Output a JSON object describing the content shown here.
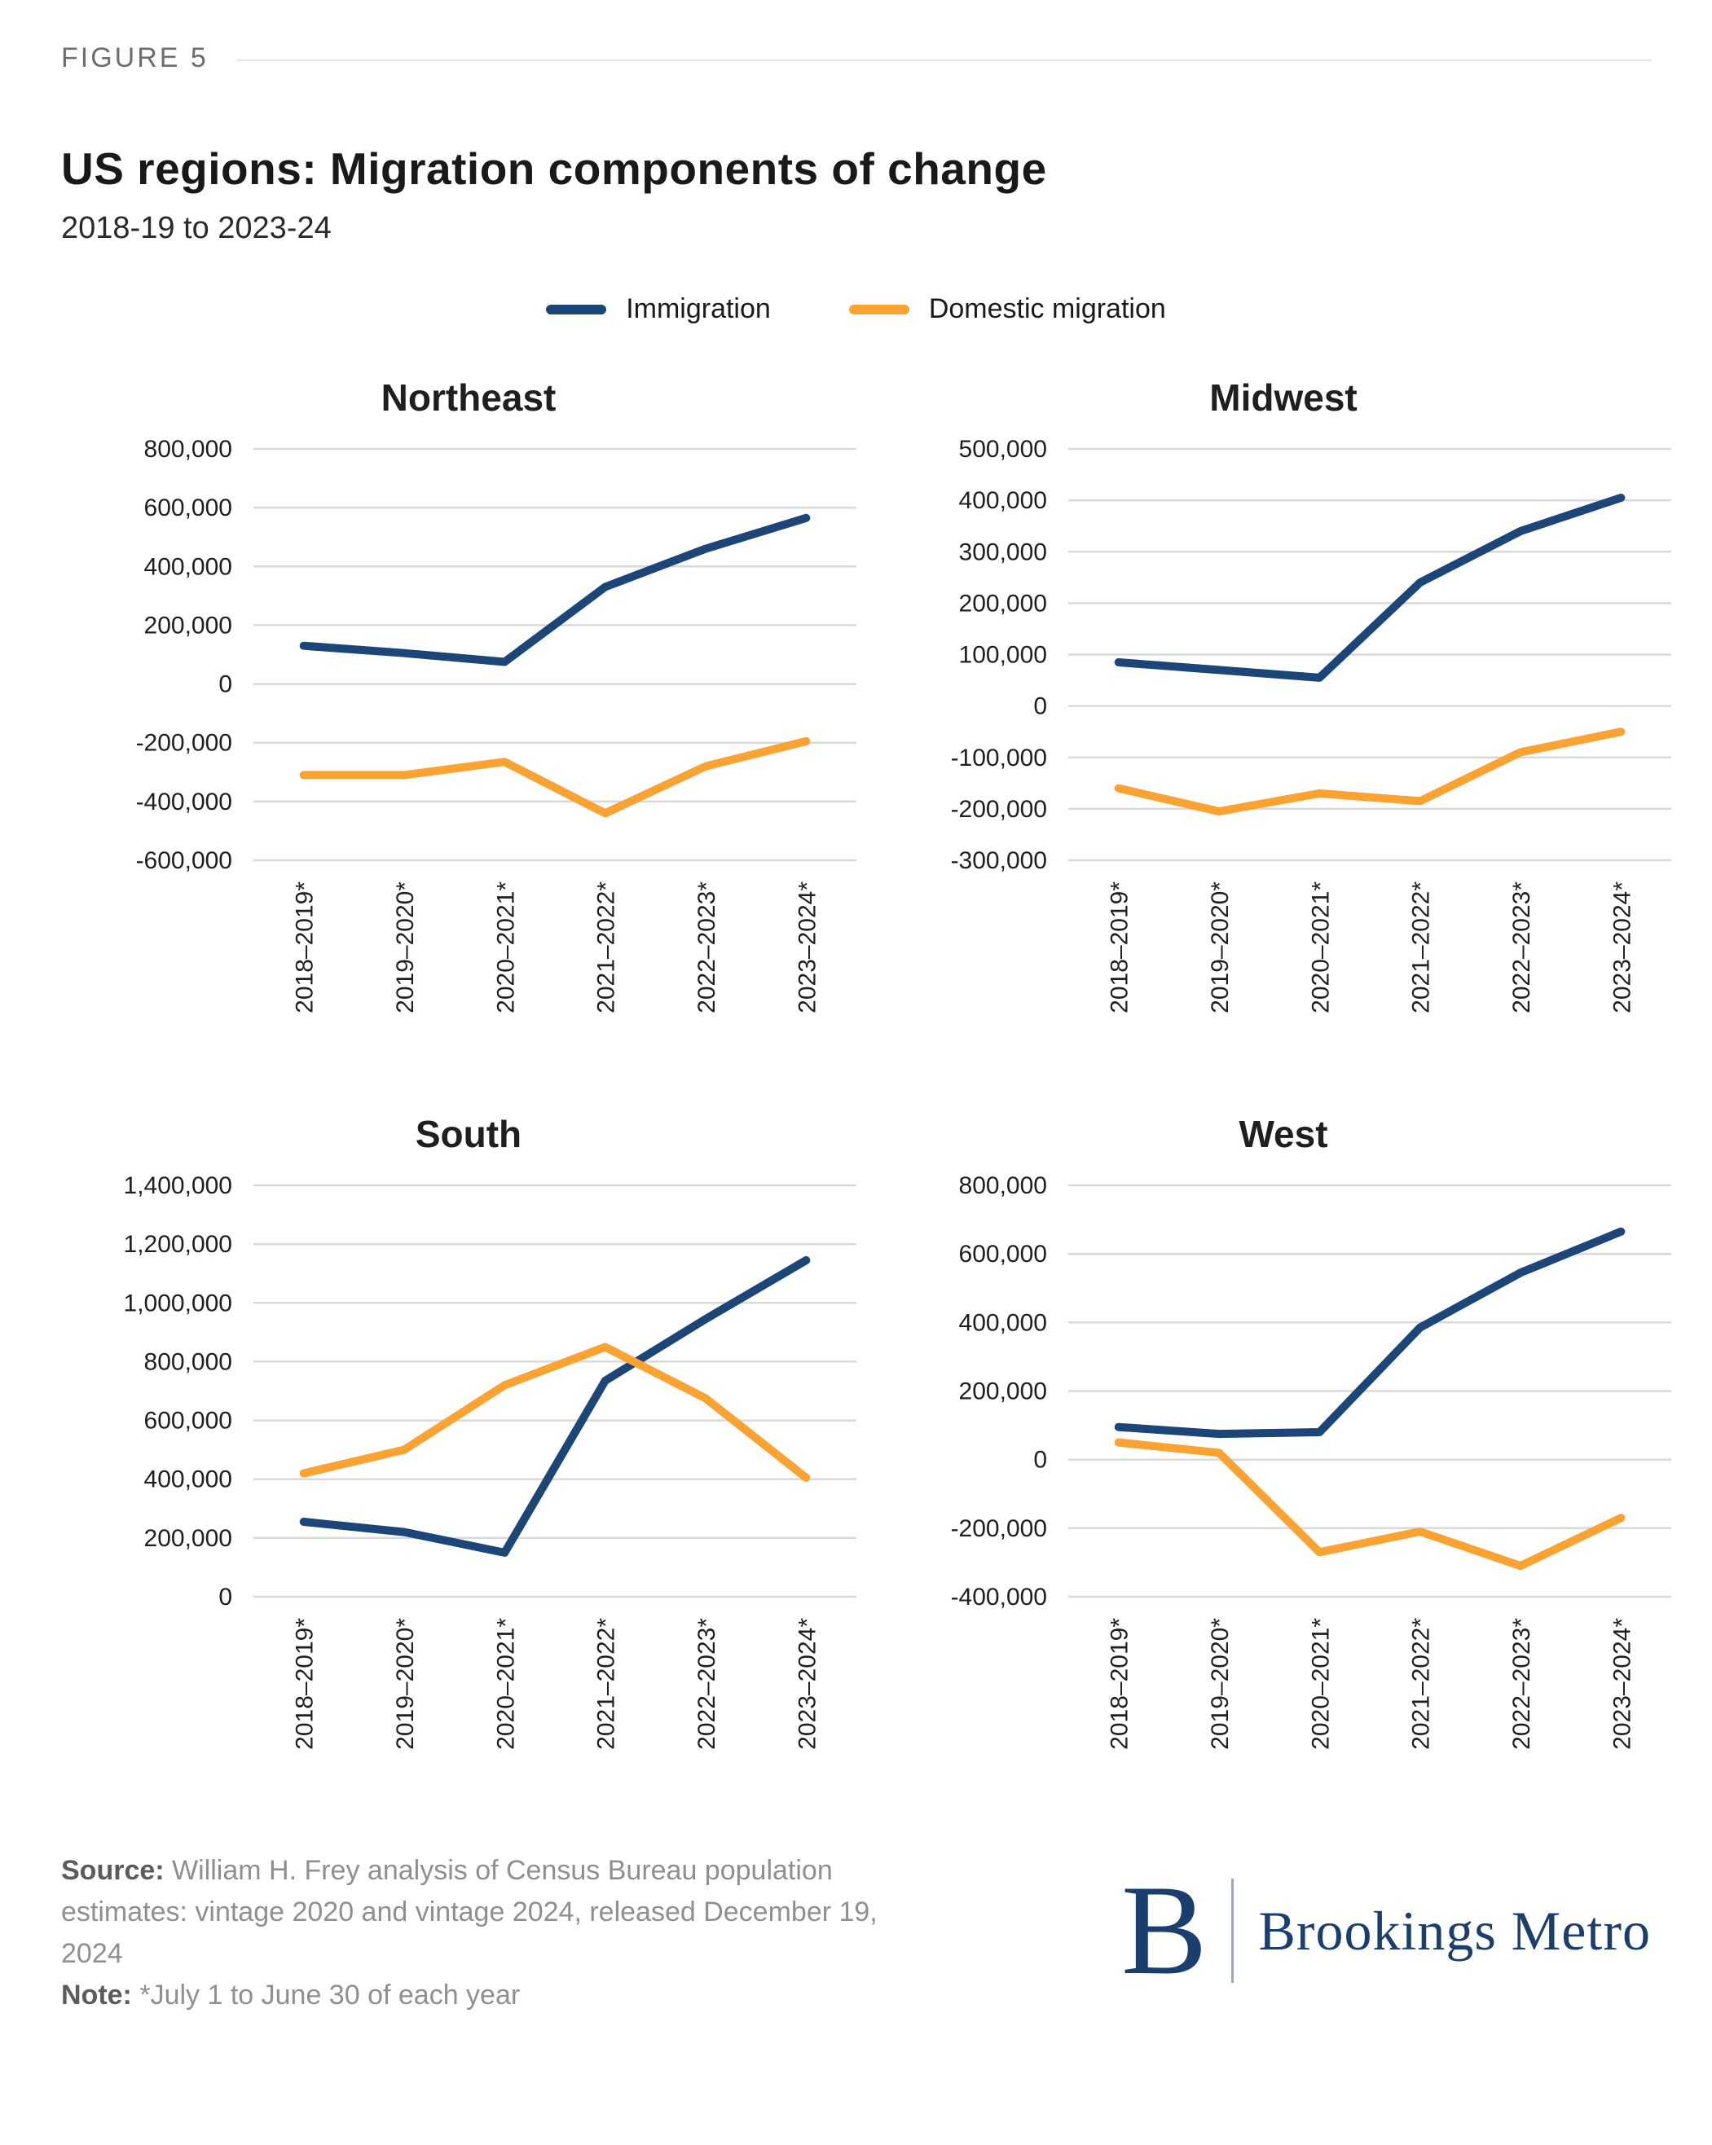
{
  "figure_label": "FIGURE 5",
  "title": "US regions: Migration components of change",
  "subtitle": "2018-19 to 2023-24",
  "legend": [
    {
      "label": "Immigration",
      "color": "#1B4677"
    },
    {
      "label": "Domestic migration",
      "color": "#FAA232"
    }
  ],
  "colors": {
    "grid": "#d9d9d9",
    "tick_text": "#1f1f1f",
    "navy": "#1B4677",
    "orange": "#FAA232",
    "logo_navy": "#1a3e6d"
  },
  "chart_data": [
    {
      "type": "line",
      "title": "Northeast",
      "categories": [
        "2018–2019*",
        "2019–2020*",
        "2020–2021*",
        "2021–2022*",
        "2022–2023*",
        "2023–2024*"
      ],
      "series": [
        {
          "name": "Immigration",
          "values": [
            130000,
            105000,
            75000,
            330000,
            460000,
            565000
          ]
        },
        {
          "name": "Domestic migration",
          "values": [
            -310000,
            -310000,
            -265000,
            -440000,
            -280000,
            -195000
          ]
        }
      ],
      "xlabel": "",
      "ylabel": "",
      "ylim": [
        -600000,
        800000
      ],
      "y_step": 200000,
      "grid": true,
      "legend_position": "shared-top"
    },
    {
      "type": "line",
      "title": "Midwest",
      "categories": [
        "2018–2019*",
        "2019–2020*",
        "2020–2021*",
        "2021–2022*",
        "2022–2023*",
        "2023–2024*"
      ],
      "series": [
        {
          "name": "Immigration",
          "values": [
            85000,
            70000,
            55000,
            240000,
            340000,
            405000
          ]
        },
        {
          "name": "Domestic migration",
          "values": [
            -160000,
            -205000,
            -170000,
            -185000,
            -90000,
            -50000
          ]
        }
      ],
      "xlabel": "",
      "ylabel": "",
      "ylim": [
        -300000,
        500000
      ],
      "y_step": 100000,
      "grid": true,
      "legend_position": "shared-top"
    },
    {
      "type": "line",
      "title": "South",
      "categories": [
        "2018–2019*",
        "2019–2020*",
        "2020–2021*",
        "2021–2022*",
        "2022–2023*",
        "2023–2024*"
      ],
      "series": [
        {
          "name": "Immigration",
          "values": [
            255000,
            220000,
            150000,
            735000,
            945000,
            1145000
          ]
        },
        {
          "name": "Domestic migration",
          "values": [
            420000,
            500000,
            720000,
            850000,
            675000,
            405000
          ]
        }
      ],
      "xlabel": "",
      "ylabel": "",
      "ylim": [
        0,
        1400000
      ],
      "y_step": 200000,
      "grid": true,
      "legend_position": "shared-top"
    },
    {
      "type": "line",
      "title": "West",
      "categories": [
        "2018–2019*",
        "2019–2020*",
        "2020–2021*",
        "2021–2022*",
        "2022–2023*",
        "2023–2024*"
      ],
      "series": [
        {
          "name": "Immigration",
          "values": [
            95000,
            75000,
            80000,
            385000,
            545000,
            665000
          ]
        },
        {
          "name": "Domestic migration",
          "values": [
            50000,
            20000,
            -270000,
            -210000,
            -310000,
            -170000
          ]
        }
      ],
      "xlabel": "",
      "ylabel": "",
      "ylim": [
        -400000,
        800000
      ],
      "y_step": 200000,
      "grid": true,
      "legend_position": "shared-top"
    }
  ],
  "footer": {
    "source_label": "Source:",
    "source_text": " William H. Frey analysis of Census Bureau population estimates: vintage 2020 and vintage 2024, released December 19, 2024",
    "note_label": "Note:",
    "note_text": " *July 1 to June 30 of each year"
  },
  "logo": {
    "monogram": "B",
    "wordmark": "Brookings Metro"
  }
}
